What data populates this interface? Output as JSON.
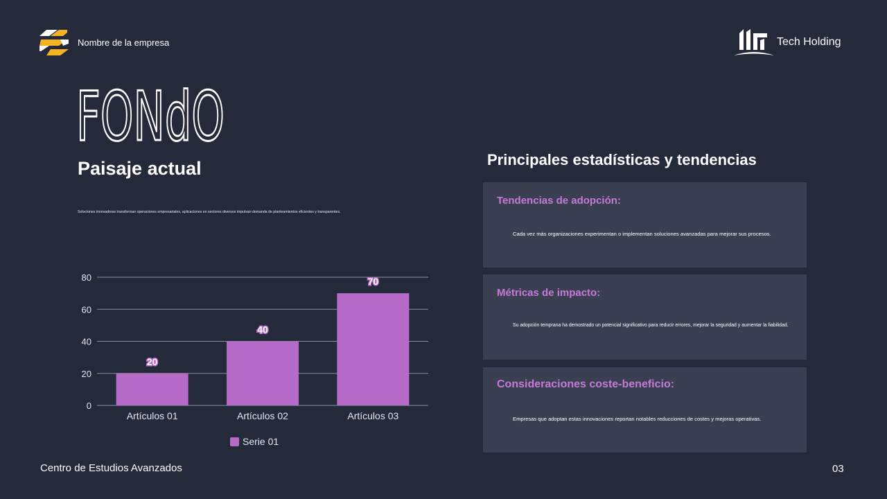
{
  "header": {
    "company_name": "Nombre de la empresa",
    "partner_name": "Tech Holding"
  },
  "left": {
    "section_title": "FONdO",
    "heading": "Paisaje actual",
    "intro": "Soluciones innovadoras transforman operaciones empresariales, aplicaciones en sectores diversos impulsan demanda de planteamientos eficientes y transparentes."
  },
  "right": {
    "heading": "Principales estadísticas y tendencias",
    "cards": [
      {
        "title": "Tendencias de adopción:",
        "body": "Cada vez más organizaciones experimentan o implementan soluciones avanzadas para mejorar sus procesos."
      },
      {
        "title": "Métricas de impacto:",
        "body": "Su adopción temprana ha demostrado un potencial significativo para reducir errores, mejorar la seguridad y aumentar la fiabilidad."
      },
      {
        "title": "Consideraciones coste-beneficio:",
        "body": "Empresas que adoptan estas innovaciones reportan notables reducciones de costes y mejoras operativas."
      }
    ]
  },
  "footer": {
    "text": "Centro de Estudios Avanzados",
    "page": "03"
  },
  "colors": {
    "background": "#252a3b",
    "card": "#3a3f52",
    "accent": "#b66bc8",
    "logo_yellow": "#f5b324"
  },
  "chart_data": {
    "type": "bar",
    "categories": [
      "Artículos 01",
      "Artículos 02",
      "Artículos 03"
    ],
    "series": [
      {
        "name": "Serie 01",
        "values": [
          20,
          40,
          70
        ],
        "color": "#b66bc8"
      }
    ],
    "yticks": [
      0,
      20,
      40,
      60,
      80
    ],
    "ylim": [
      0,
      80
    ],
    "grid": true,
    "data_labels": true,
    "legend_position": "bottom"
  }
}
